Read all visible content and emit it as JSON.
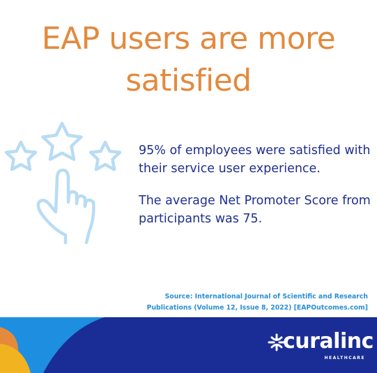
{
  "headline": {
    "line1": "EAP users are more",
    "line2": "satisfied"
  },
  "stats": {
    "satisfaction_text": "95% of employees were satisfied with their service user experience.",
    "nps_text": "The average Net Promoter Score from participants was 75."
  },
  "source": {
    "line1": "Source: International Journal of Scientific and Research",
    "line2": "Publications (Volume 12, Issue 8, 2022) [EAPOutcomes.com]"
  },
  "brand": {
    "name": "curalinc",
    "subtitle": "HEALTHCARE"
  },
  "colors": {
    "headline": "#e28a3e",
    "stats_text": "#1f2f8f",
    "source_text": "#2a8fd6",
    "icon_stroke": "#b8dcf3",
    "footer_navy": "#1a2d96",
    "footer_blue": "#1e8fe0",
    "footer_yellow": "#f2b320",
    "footer_orange": "#e48a3c"
  },
  "icons": {
    "illustration": "stars-rating-hand-icon",
    "brand_mark": "curalinc-logo-icon"
  }
}
